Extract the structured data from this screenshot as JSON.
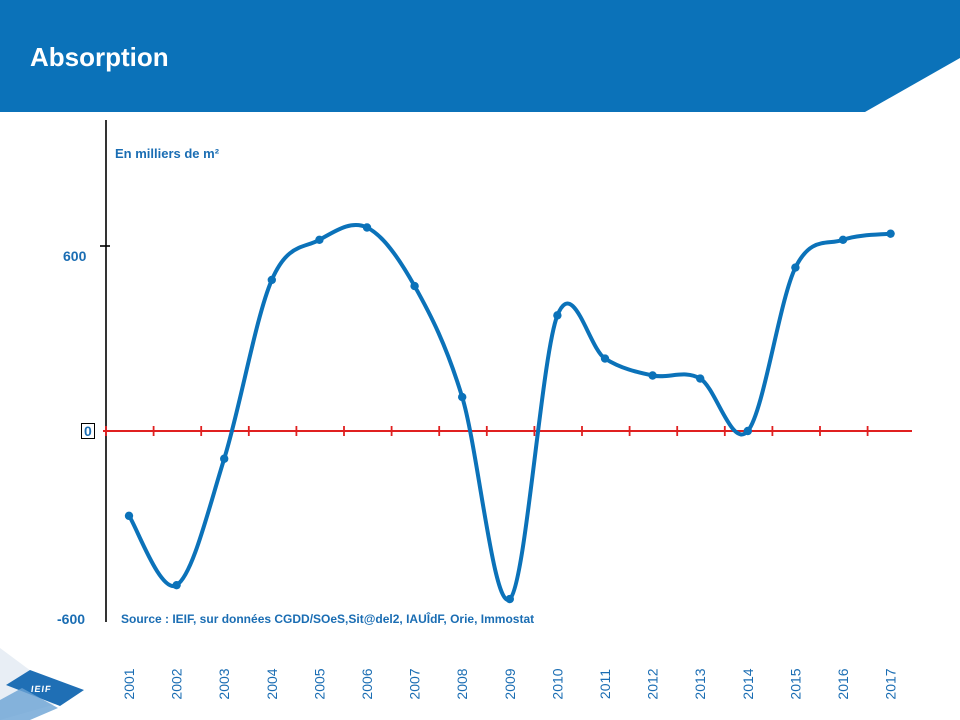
{
  "slide": {
    "title": "Absorption",
    "header_color": "#0b72b9",
    "logo_text": "IEIF"
  },
  "chart_data": {
    "type": "line",
    "title": "",
    "unit_label": "En milliers de m²",
    "source": "Source : IEIF, sur données CGDD/SOeS,Sit@del2, IAUÎdF, Orie, Immostat",
    "categories": [
      "2001",
      "2002",
      "2003",
      "2004",
      "2005",
      "2006",
      "2007",
      "2008",
      "2009",
      "2010",
      "2011",
      "2012",
      "2013",
      "2014",
      "2015",
      "2016",
      "2017"
    ],
    "series": [
      {
        "values": [
          -275,
          -500,
          -90,
          490,
          620,
          660,
          470,
          110,
          -545,
          375,
          235,
          180,
          170,
          0,
          530,
          620,
          640
        ],
        "color": "#0b72b9",
        "smooth": true,
        "markers": true
      }
    ],
    "ylim": [
      -600,
      600
    ],
    "y_tick_labels": [
      "600",
      "0",
      "-600"
    ],
    "zero_line_color": "#e02020",
    "axis_color": "#000000",
    "label_color": "#1a6db3",
    "grid": false,
    "legend": "none"
  }
}
